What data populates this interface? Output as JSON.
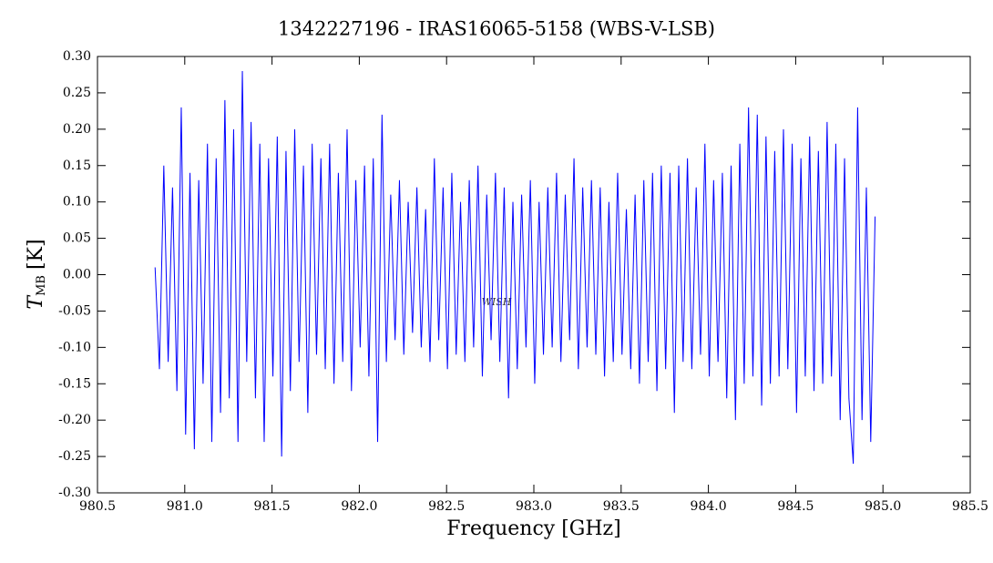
{
  "chart_data": {
    "type": "line",
    "title": "1342227196 - IRAS16065-5158 (WBS-V-LSB)",
    "x_label": "Frequency [GHz]",
    "y_label": {
      "symbol": "T",
      "subscript": "MB",
      "unit": "[K]"
    },
    "watermark": "WISH",
    "color": "#0000ff",
    "xlim": [
      980.5,
      985.5
    ],
    "ylim": [
      -0.3,
      0.3
    ],
    "xticks": [
      980.5,
      {
        "value": 981.0,
        "label": "981.0"
      },
      981.5,
      {
        "value": 982.0,
        "label": "982.0"
      },
      982.5,
      {
        "value": 983.0,
        "label": "983.0"
      },
      983.5,
      {
        "value": 984.0,
        "label": "984.0"
      },
      984.5,
      {
        "value": 985.0,
        "label": "985.0"
      },
      985.5
    ],
    "yticks": [
      {
        "value": -0.3,
        "label": "-0.30"
      },
      {
        "value": -0.25,
        "label": "-0.25"
      },
      {
        "value": -0.2,
        "label": "-0.20"
      },
      {
        "value": -0.15,
        "label": "-0.15"
      },
      {
        "value": -0.1,
        "label": "-0.10"
      },
      {
        "value": -0.05,
        "label": "-0.05"
      },
      {
        "value": 0,
        "label": "0.00"
      },
      {
        "value": 0.05,
        "label": "0.05"
      },
      {
        "value": 0.1,
        "label": "0.10"
      },
      {
        "value": 0.15,
        "label": "0.15"
      },
      {
        "value": 0.2,
        "label": "0.20"
      },
      {
        "value": 0.25,
        "label": "0.25"
      },
      {
        "value": 0.3,
        "label": "0.30"
      }
    ],
    "x": [
      980.83,
      980.855,
      980.88,
      980.905,
      980.93,
      980.955,
      980.98,
      981.005,
      981.03,
      981.055,
      981.08,
      981.105,
      981.13,
      981.155,
      981.18,
      981.205,
      981.23,
      981.255,
      981.28,
      981.305,
      981.33,
      981.355,
      981.38,
      981.405,
      981.43,
      981.455,
      981.48,
      981.505,
      981.53,
      981.555,
      981.58,
      981.605,
      981.63,
      981.655,
      981.68,
      981.705,
      981.73,
      981.755,
      981.78,
      981.805,
      981.83,
      981.855,
      981.88,
      981.905,
      981.93,
      981.955,
      981.98,
      982.005,
      982.03,
      982.055,
      982.08,
      982.105,
      982.13,
      982.155,
      982.18,
      982.205,
      982.23,
      982.255,
      982.28,
      982.305,
      982.33,
      982.355,
      982.38,
      982.405,
      982.43,
      982.455,
      982.48,
      982.505,
      982.53,
      982.555,
      982.58,
      982.605,
      982.63,
      982.655,
      982.68,
      982.705,
      982.73,
      982.755,
      982.78,
      982.805,
      982.83,
      982.855,
      982.88,
      982.905,
      982.93,
      982.955,
      982.98,
      983.005,
      983.03,
      983.055,
      983.08,
      983.105,
      983.13,
      983.155,
      983.18,
      983.205,
      983.23,
      983.255,
      983.28,
      983.305,
      983.33,
      983.355,
      983.38,
      983.405,
      983.43,
      983.455,
      983.48,
      983.505,
      983.53,
      983.555,
      983.58,
      983.605,
      983.63,
      983.655,
      983.68,
      983.705,
      983.73,
      983.755,
      983.78,
      983.805,
      983.83,
      983.855,
      983.88,
      983.905,
      983.93,
      983.955,
      983.98,
      984.005,
      984.03,
      984.055,
      984.08,
      984.105,
      984.13,
      984.155,
      984.18,
      984.205,
      984.23,
      984.255,
      984.28,
      984.305,
      984.33,
      984.355,
      984.38,
      984.405,
      984.43,
      984.455,
      984.48,
      984.505,
      984.53,
      984.555,
      984.58,
      984.605,
      984.63,
      984.655,
      984.68,
      984.705,
      984.73,
      984.755,
      984.78,
      984.805,
      984.83,
      984.855,
      984.88,
      984.905,
      984.93,
      984.955
    ],
    "values": [
      0.01,
      -0.13,
      0.15,
      -0.12,
      0.12,
      -0.16,
      0.23,
      -0.22,
      0.14,
      -0.24,
      0.13,
      -0.15,
      0.18,
      -0.23,
      0.16,
      -0.19,
      0.24,
      -0.17,
      0.2,
      -0.23,
      0.28,
      -0.12,
      0.21,
      -0.17,
      0.18,
      -0.23,
      0.16,
      -0.14,
      0.19,
      -0.25,
      0.17,
      -0.16,
      0.2,
      -0.12,
      0.15,
      -0.19,
      0.18,
      -0.11,
      0.16,
      -0.13,
      0.18,
      -0.15,
      0.14,
      -0.12,
      0.2,
      -0.16,
      0.13,
      -0.1,
      0.15,
      -0.14,
      0.16,
      -0.23,
      0.22,
      -0.12,
      0.11,
      -0.09,
      0.13,
      -0.11,
      0.1,
      -0.08,
      0.12,
      -0.1,
      0.09,
      -0.12,
      0.16,
      -0.09,
      0.12,
      -0.13,
      0.14,
      -0.11,
      0.1,
      -0.12,
      0.13,
      -0.1,
      0.15,
      -0.14,
      0.11,
      -0.09,
      0.14,
      -0.12,
      0.12,
      -0.17,
      0.1,
      -0.13,
      0.11,
      -0.1,
      0.13,
      -0.15,
      0.1,
      -0.11,
      0.12,
      -0.1,
      0.14,
      -0.12,
      0.11,
      -0.09,
      0.16,
      -0.13,
      0.12,
      -0.1,
      0.13,
      -0.11,
      0.12,
      -0.14,
      0.1,
      -0.12,
      0.14,
      -0.11,
      0.09,
      -0.13,
      0.11,
      -0.15,
      0.13,
      -0.12,
      0.14,
      -0.16,
      0.15,
      -0.13,
      0.14,
      -0.19,
      0.15,
      -0.12,
      0.16,
      -0.13,
      0.12,
      -0.11,
      0.18,
      -0.14,
      0.13,
      -0.12,
      0.14,
      -0.17,
      0.15,
      -0.2,
      0.18,
      -0.15,
      0.23,
      -0.14,
      0.22,
      -0.18,
      0.19,
      -0.15,
      0.17,
      -0.14,
      0.2,
      -0.13,
      0.18,
      -0.19,
      0.16,
      -0.14,
      0.19,
      -0.16,
      0.17,
      -0.15,
      0.21,
      -0.14,
      0.18,
      -0.2,
      0.16,
      -0.17,
      -0.26,
      0.23,
      -0.2,
      0.12,
      -0.23,
      0.08
    ]
  }
}
